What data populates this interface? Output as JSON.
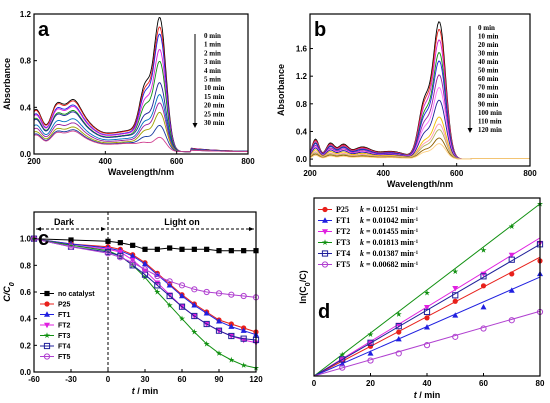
{
  "chart_data": [
    {
      "panel": "a",
      "type": "line",
      "xlabel": "Wavelength/nm",
      "ylabel": "Absorbance",
      "xlim": [
        200,
        800
      ],
      "ylim": [
        0,
        1.2
      ],
      "xticks": [
        "200",
        "400",
        "600",
        "800"
      ],
      "yticks": [
        "0.0",
        "0.4",
        "0.8",
        "1.2"
      ],
      "legend_labels": [
        "0 min",
        "1 min",
        "2 min",
        "3 min",
        "4 min",
        "5 min",
        "10 min",
        "15 min",
        "20 min",
        "25 min",
        "30 min"
      ],
      "peak_x": 553,
      "colors": [
        "#000000",
        "#e8201b",
        "#2020e0",
        "#e020e0",
        "#109010",
        "#20209a",
        "#0070c0",
        "#9a1fa0",
        "#a0a000",
        "#1a3aa0",
        "#d04090"
      ],
      "series": [
        {
          "name": "0 min",
          "peak": 1.13,
          "base": 0.38
        },
        {
          "name": "1 min",
          "peak": 1.05,
          "base": 0.37
        },
        {
          "name": "2 min",
          "peak": 0.99,
          "base": 0.34
        },
        {
          "name": "3 min",
          "peak": 0.86,
          "base": 0.33
        },
        {
          "name": "4 min",
          "peak": 0.76,
          "base": 0.3
        },
        {
          "name": "5 min",
          "peak": 0.58,
          "base": 0.29
        },
        {
          "name": "10 min",
          "peak": 0.48,
          "base": 0.24
        },
        {
          "name": "15 min",
          "peak": 0.41,
          "base": 0.21
        },
        {
          "name": "20 min",
          "peak": 0.33,
          "base": 0.18
        },
        {
          "name": "25 min",
          "peak": 0.22,
          "base": 0.16
        },
        {
          "name": "30 min",
          "peak": 0.12,
          "base": 0.15
        }
      ]
    },
    {
      "panel": "b",
      "type": "line",
      "xlabel": "Wavelength/nm",
      "ylabel": "Absorbance",
      "xlim": [
        200,
        800
      ],
      "ylim": [
        -0.1,
        2.1
      ],
      "xticks": [
        "200",
        "400",
        "600",
        "800"
      ],
      "yticks": [
        "0.0",
        "0.4",
        "0.8",
        "1.2",
        "1.6"
      ],
      "legend_labels": [
        "0  min",
        "10  min",
        "20  min",
        "30  min",
        "40  min",
        "50  min",
        "60  min",
        "70  min",
        "80  min",
        "90  min",
        "100  min",
        "110  min",
        "120  min"
      ],
      "peak_x": 553,
      "colors": [
        "#000000",
        "#e8201b",
        "#d020d0",
        "#109010",
        "#2020e0",
        "#9a1fa0",
        "#ff70ff",
        "#20209a",
        "#f0c000",
        "#ff9bb0",
        "#b0b060",
        "#906000",
        "#ffd080"
      ],
      "series": [
        {
          "name": "0  min",
          "peak": 1.96,
          "base": 0.32
        },
        {
          "name": "10  min",
          "peak": 1.85,
          "base": 0.3
        },
        {
          "name": "20  min",
          "peak": 1.7,
          "base": 0.28
        },
        {
          "name": "30  min",
          "peak": 1.52,
          "base": 0.26
        },
        {
          "name": "40  min",
          "peak": 1.4,
          "base": 0.25
        },
        {
          "name": "50  min",
          "peak": 1.2,
          "base": 0.22
        },
        {
          "name": "60  min",
          "peak": 1.02,
          "base": 0.2
        },
        {
          "name": "70  min",
          "peak": 0.84,
          "base": 0.18
        },
        {
          "name": "80  min",
          "peak": 0.6,
          "base": 0.15
        },
        {
          "name": "90  min",
          "peak": 0.5,
          "base": 0.12
        },
        {
          "name": "100  min",
          "peak": 0.42,
          "base": 0.1
        },
        {
          "name": "110  min",
          "peak": 0.3,
          "base": 0.08
        },
        {
          "name": "120  min",
          "peak": 0.22,
          "base": 0.06
        }
      ]
    },
    {
      "panel": "c",
      "type": "line",
      "xlabel": "t / min",
      "ylabel": "C/C0",
      "xlim": [
        -60,
        120
      ],
      "ylim": [
        0,
        1.2
      ],
      "xticks": [
        "-60",
        "-30",
        "0",
        "30",
        "60",
        "90",
        "120"
      ],
      "yticks": [
        "0.0",
        "0.2",
        "0.4",
        "0.6",
        "0.8",
        "1.0"
      ],
      "regions": {
        "left": "Dark",
        "right": "Light on"
      },
      "x": [
        -60,
        -30,
        0,
        10,
        20,
        30,
        40,
        50,
        60,
        70,
        80,
        90,
        100,
        110,
        120
      ],
      "series": [
        {
          "name": "no catalyst",
          "color": "#000000",
          "marker": "square",
          "values": [
            1.0,
            0.99,
            0.98,
            0.97,
            0.95,
            0.92,
            0.92,
            0.93,
            0.92,
            0.92,
            0.92,
            0.91,
            0.91,
            0.91,
            0.91
          ]
        },
        {
          "name": "P25",
          "color": "#e8201b",
          "marker": "circle",
          "values": [
            1.0,
            0.96,
            0.94,
            0.92,
            0.88,
            0.82,
            0.74,
            0.66,
            0.58,
            0.51,
            0.45,
            0.39,
            0.36,
            0.33,
            0.3
          ]
        },
        {
          "name": "FT1",
          "color": "#2020e0",
          "marker": "triangle",
          "values": [
            1.0,
            0.96,
            0.93,
            0.91,
            0.87,
            0.81,
            0.73,
            0.65,
            0.57,
            0.5,
            0.44,
            0.38,
            0.34,
            0.31,
            0.28
          ]
        },
        {
          "name": "FT2",
          "color": "#e020e0",
          "marker": "triangle-down",
          "values": [
            1.0,
            0.95,
            0.92,
            0.9,
            0.84,
            0.76,
            0.67,
            0.58,
            0.49,
            0.42,
            0.36,
            0.31,
            0.27,
            0.24,
            0.22
          ]
        },
        {
          "name": "FT3",
          "color": "#109010",
          "marker": "star",
          "values": [
            1.0,
            0.95,
            0.91,
            0.87,
            0.8,
            0.71,
            0.6,
            0.5,
            0.4,
            0.3,
            0.21,
            0.14,
            0.09,
            0.05,
            0.03
          ]
        },
        {
          "name": "FT4",
          "color": "#20209a",
          "marker": "open-square",
          "values": [
            1.0,
            0.94,
            0.9,
            0.87,
            0.8,
            0.73,
            0.65,
            0.57,
            0.49,
            0.42,
            0.36,
            0.31,
            0.27,
            0.25,
            0.24
          ]
        },
        {
          "name": "FT5",
          "color": "#b040d0",
          "marker": "open-circle",
          "values": [
            1.0,
            0.94,
            0.89,
            0.86,
            0.82,
            0.77,
            0.72,
            0.68,
            0.65,
            0.62,
            0.6,
            0.59,
            0.58,
            0.57,
            0.56
          ]
        }
      ]
    },
    {
      "panel": "d",
      "type": "scatter",
      "xlabel": "t / min",
      "ylabel": "ln(C0/C)",
      "xlim": [
        0,
        80
      ],
      "ylim": [
        0,
        1.5
      ],
      "xticks": [
        "0",
        "20",
        "40",
        "60",
        "80"
      ],
      "x": [
        0,
        10,
        20,
        30,
        40,
        50,
        60,
        70,
        80
      ],
      "unit": "min",
      "series": [
        {
          "name": "P25",
          "k_label": "k = 0.01251",
          "k": 0.01251,
          "color": "#e8201b",
          "marker": "circle",
          "values": [
            0,
            0.13,
            0.25,
            0.37,
            0.49,
            0.63,
            0.76,
            0.86,
            0.97
          ]
        },
        {
          "name": "FT1",
          "k_label": "k = 0.01042",
          "k": 0.01042,
          "color": "#2020e0",
          "marker": "triangle",
          "values": [
            0,
            0.1,
            0.19,
            0.31,
            0.41,
            0.51,
            0.58,
            0.72,
            0.86
          ]
        },
        {
          "name": "FT2",
          "k_label": "k = 0.01455",
          "k": 0.01455,
          "color": "#e020e0",
          "marker": "triangle-down",
          "values": [
            0,
            0.14,
            0.28,
            0.43,
            0.58,
            0.74,
            0.86,
            1.02,
            1.12
          ]
        },
        {
          "name": "FT3",
          "k_label": "k = 0.01813",
          "k": 0.01813,
          "color": "#109010",
          "marker": "star",
          "values": [
            0,
            0.18,
            0.35,
            0.52,
            0.7,
            0.88,
            1.06,
            1.26,
            1.45
          ]
        },
        {
          "name": "FT4",
          "k_label": "k = 0.01387",
          "k": 0.01387,
          "color": "#20209a",
          "marker": "open-square",
          "values": [
            0,
            0.14,
            0.28,
            0.42,
            0.54,
            0.68,
            0.84,
            0.98,
            1.11
          ]
        },
        {
          "name": "FT5",
          "k_label": "k = 0.00682",
          "k": 0.00682,
          "color": "#b040d0",
          "marker": "open-circle",
          "values": [
            0,
            0.07,
            0.13,
            0.19,
            0.26,
            0.33,
            0.4,
            0.47,
            0.54
          ]
        }
      ]
    }
  ]
}
